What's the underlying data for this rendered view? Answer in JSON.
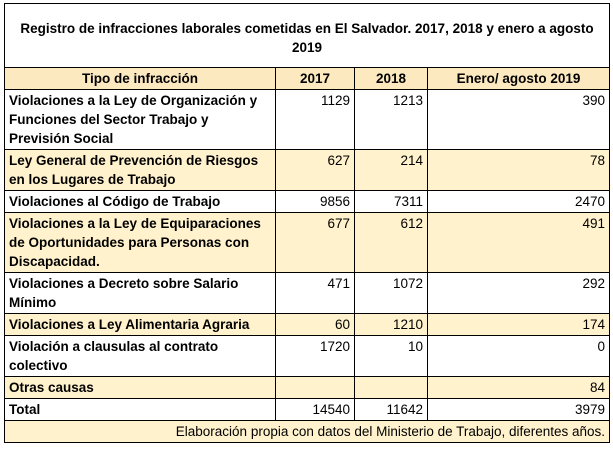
{
  "title": "Registro de infracciones laborales cometidas en El Salvador. 2017, 2018 y enero a agosto 2019",
  "headers": [
    "Tipo de infracción",
    "2017",
    "2018",
    "Enero/ agosto 2019"
  ],
  "rows": [
    {
      "name": "Violaciones a la Ley de Organización y Funciones del Sector Trabajo y Previsión Social",
      "v2017": "1129",
      "v2018": "1213",
      "v2019": "390"
    },
    {
      "name": "Ley General de Prevención de Riesgos en los Lugares de Trabajo",
      "v2017": "627",
      "v2018": "214",
      "v2019": "78"
    },
    {
      "name": "Violaciones al Código de Trabajo",
      "v2017": "9856",
      "v2018": "7311",
      "v2019": "2470"
    },
    {
      "name": "Violaciones a la Ley de Equiparaciones de Oportunidades para Personas con Discapacidad.",
      "v2017": "677",
      "v2018": "612",
      "v2019": "491"
    },
    {
      "name": "Violaciones a Decreto sobre Salario Mínimo",
      "v2017": "471",
      "v2018": "1072",
      "v2019": "292"
    },
    {
      "name": "Violaciones a Ley Alimentaria Agraria",
      "v2017": "60",
      "v2018": "1210",
      "v2019": "174"
    },
    {
      "name": "Violación a clausulas al contrato colectivo",
      "v2017": "1720",
      "v2018": "10",
      "v2019": "0"
    },
    {
      "name": "Otras causas",
      "v2017": "",
      "v2018": "",
      "v2019": "84"
    }
  ],
  "total": {
    "label": "Total",
    "v2017": "14540",
    "v2018": "11642",
    "v2019": "3979"
  },
  "source": "Elaboración propia con datos del Ministerio de Trabajo, diferentes años.",
  "colors": {
    "header_bg": "#fde9bf",
    "alt_row_bg": "#fff2cc",
    "border": "#000000"
  }
}
